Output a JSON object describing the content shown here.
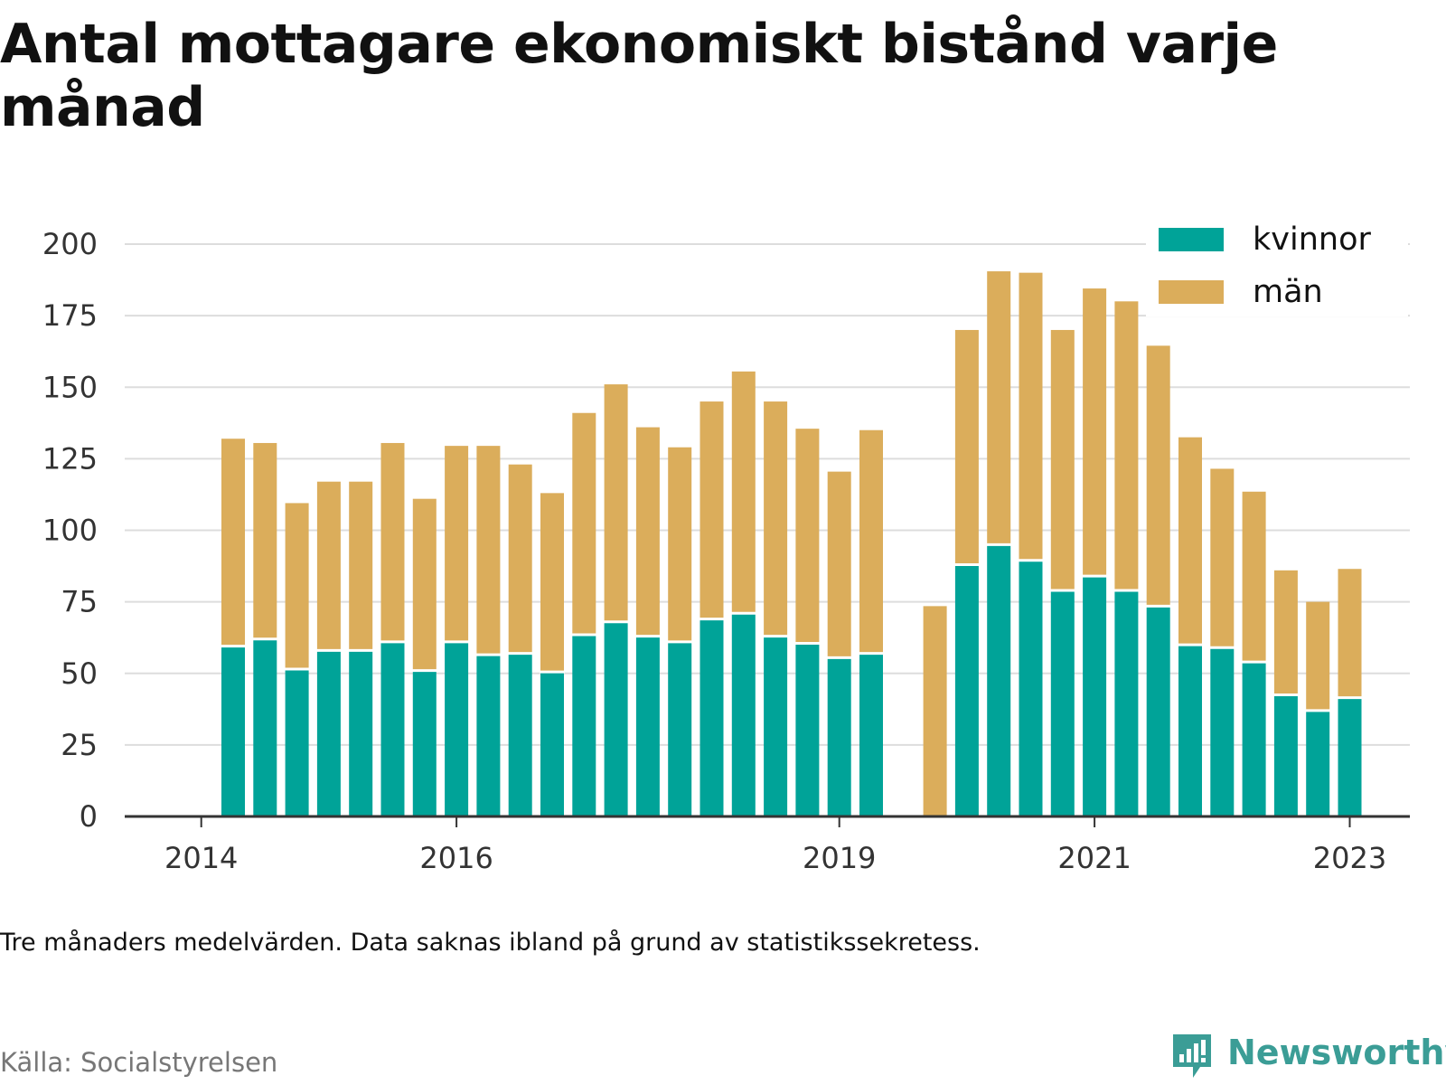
{
  "title": "Antal mottagare ekonomiskt bistånd varje månad",
  "note": "Tre månaders medelvärden. Data saknas ibland på grund av statistikssekretess.",
  "source": "Källa: Socialstyrelsen",
  "logo": {
    "text": "Newsworthy",
    "icon": "bar-chart-speech-bubble-icon"
  },
  "colors": {
    "kvinnor": "#00a398",
    "man": "#dbad5b",
    "grid": "#dddddd",
    "axis": "#333333",
    "logo": "#3b9d96"
  },
  "chart_data": {
    "type": "bar",
    "stacked": true,
    "ylim": [
      0,
      200
    ],
    "yticks": [
      "0",
      "25",
      "50",
      "75",
      "100",
      "125",
      "150",
      "175",
      "200"
    ],
    "xticks": [
      {
        "label": "2014",
        "index": -1
      },
      {
        "label": "2016",
        "index": 7
      },
      {
        "label": "2019",
        "index": 19
      },
      {
        "label": "2021",
        "index": 27
      },
      {
        "label": "2023",
        "index": 35
      }
    ],
    "legend_position": "top-right",
    "series": [
      {
        "name": "kvinnor",
        "color": "#00a398",
        "values": [
          59.5,
          62,
          51.5,
          58,
          58,
          61,
          51,
          61,
          56.5,
          57,
          50.5,
          63.5,
          68,
          63,
          61,
          69,
          71,
          63,
          60.5,
          55.5,
          57,
          null,
          null,
          88,
          95,
          89.5,
          79,
          84,
          79,
          73.5,
          60,
          59,
          54,
          42.5,
          37,
          41.5
        ]
      },
      {
        "name": "män",
        "color": "#dbad5b",
        "values": [
          72.5,
          68.5,
          58,
          59,
          59,
          69.5,
          60,
          68.5,
          73,
          66,
          62.5,
          77.5,
          83,
          73,
          68,
          76,
          84.5,
          82,
          75,
          65,
          78,
          null,
          73.5,
          82,
          95.5,
          100.5,
          91,
          100.5,
          101,
          91,
          72.5,
          62.5,
          59.5,
          43.5,
          38,
          45
        ]
      }
    ]
  }
}
